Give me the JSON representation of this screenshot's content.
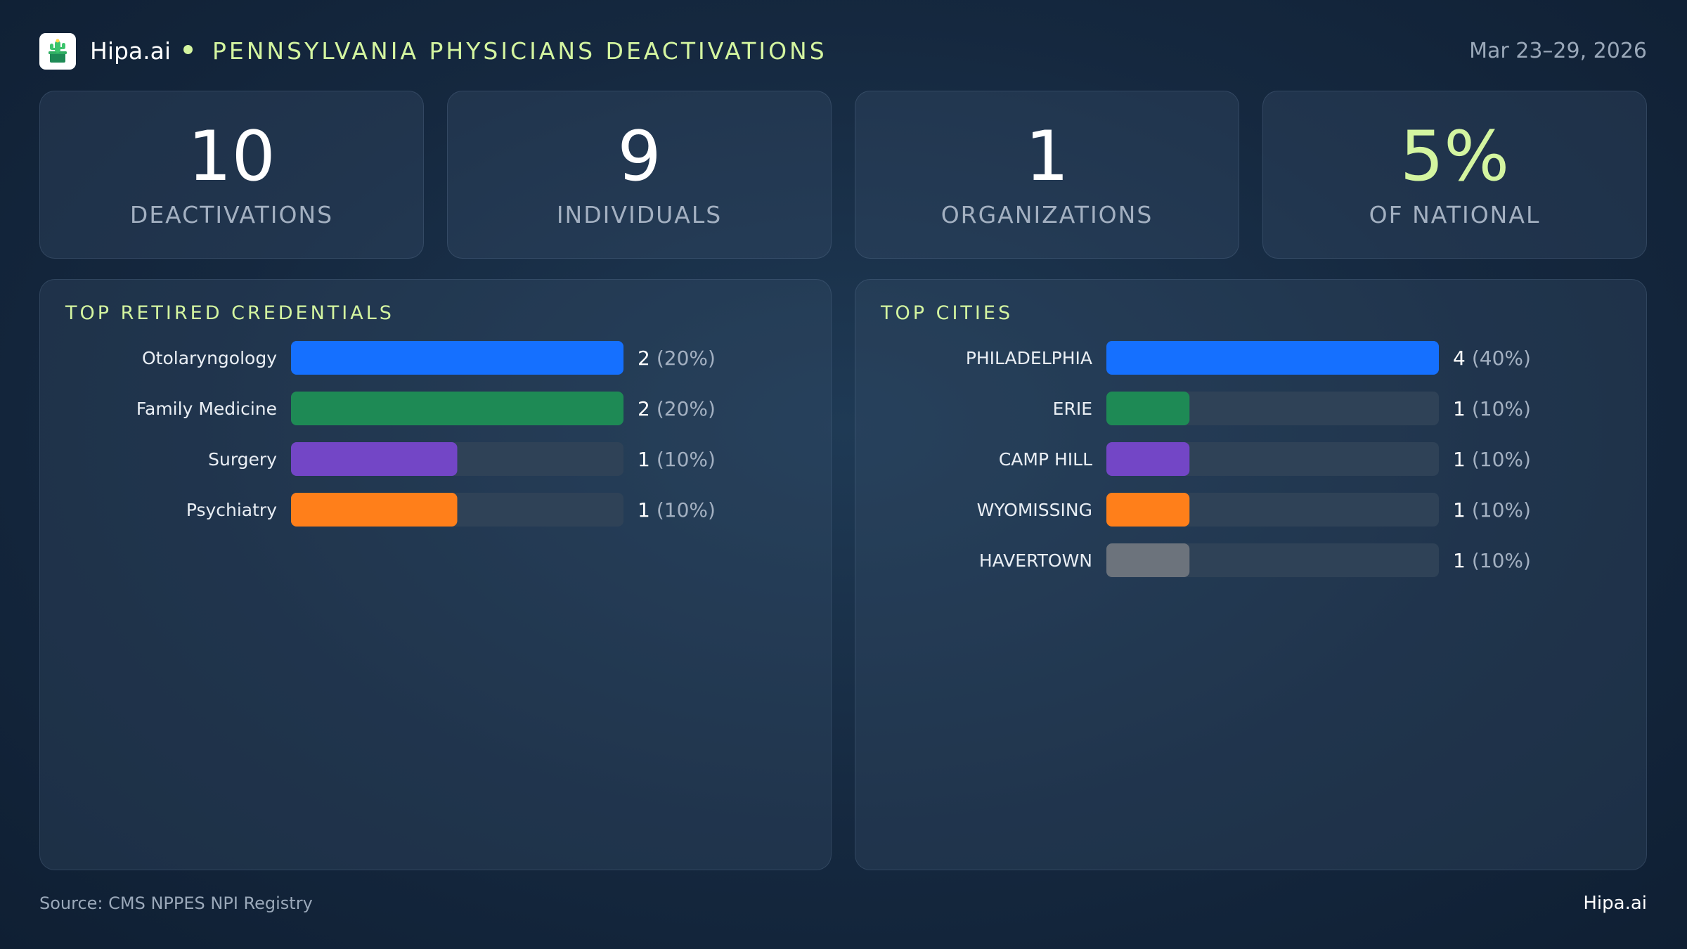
{
  "header": {
    "brand": "Hipa.ai",
    "title": "PENNSYLVANIA PHYSICIANS DEACTIVATIONS",
    "date_range": "Mar 23–29, 2026",
    "logo_icon": "cactus-logo-icon"
  },
  "colors": {
    "accent": "#d4f5a0",
    "label_muted": "#a3b0c1",
    "track": "#2f4257",
    "blue": "#1570ff",
    "green": "#1e8a55",
    "purple": "#7346c6",
    "orange": "#ff7f1a",
    "gray": "#6c737c"
  },
  "stats": [
    {
      "value": "10",
      "label": "DEACTIVATIONS"
    },
    {
      "value": "9",
      "label": "INDIVIDUALS"
    },
    {
      "value": "1",
      "label": "ORGANIZATIONS"
    },
    {
      "value": "5%",
      "label": "OF NATIONAL"
    }
  ],
  "chart_data": [
    {
      "type": "bar",
      "orientation": "horizontal",
      "title": "TOP RETIRED CREDENTIALS",
      "xlim": [
        0,
        2
      ],
      "categories": [
        "Otolaryngology",
        "Family Medicine",
        "Surgery",
        "Psychiatry"
      ],
      "values": [
        2,
        2,
        1,
        1
      ],
      "percent_labels": [
        "(20%)",
        "(20%)",
        "(10%)",
        "(10%)"
      ],
      "colors": [
        "#1570ff",
        "#1e8a55",
        "#7346c6",
        "#ff7f1a"
      ]
    },
    {
      "type": "bar",
      "orientation": "horizontal",
      "title": "TOP CITIES",
      "xlim": [
        0,
        4
      ],
      "categories": [
        "PHILADELPHIA",
        "ERIE",
        "CAMP HILL",
        "WYOMISSING",
        "HAVERTOWN"
      ],
      "values": [
        4,
        1,
        1,
        1,
        1
      ],
      "percent_labels": [
        "(40%)",
        "(10%)",
        "(10%)",
        "(10%)",
        "(10%)"
      ],
      "colors": [
        "#1570ff",
        "#1e8a55",
        "#7346c6",
        "#ff7f1a",
        "#6c737c"
      ]
    }
  ],
  "footer": {
    "source": "Source: CMS NPPES NPI Registry",
    "brand": "Hipa.ai"
  }
}
